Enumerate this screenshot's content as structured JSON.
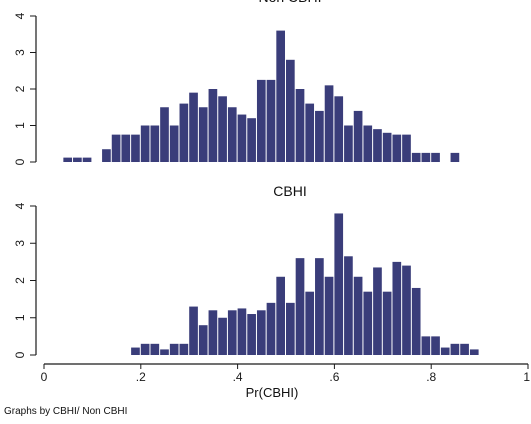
{
  "chart_data": {
    "type": "bar",
    "note": "Graphs by CBHI/ Non CBHI",
    "xlabel": "Pr(CBHI)",
    "bar_color": "#3a3d7a",
    "bin_width": 0.02,
    "xlim": [
      0,
      1
    ],
    "x_ticks": [
      0,
      0.2,
      0.4,
      0.6,
      0.8,
      1
    ],
    "x_tick_labels": [
      "0",
      ".2",
      ".4",
      ".6",
      ".8",
      "1"
    ],
    "panels": [
      {
        "title": "Non CBHI",
        "ylim": [
          0,
          4
        ],
        "y_ticks": [
          0,
          1,
          2,
          3,
          4
        ],
        "y_tick_labels": [
          "0",
          "1",
          "2",
          "3",
          "4"
        ],
        "bin_starts": [
          0.04,
          0.06,
          0.08,
          0.12,
          0.14,
          0.16,
          0.18,
          0.2,
          0.22,
          0.24,
          0.26,
          0.28,
          0.3,
          0.32,
          0.34,
          0.36,
          0.38,
          0.4,
          0.42,
          0.44,
          0.46,
          0.48,
          0.5,
          0.52,
          0.54,
          0.56,
          0.58,
          0.6,
          0.62,
          0.64,
          0.66,
          0.68,
          0.7,
          0.72,
          0.74,
          0.76,
          0.78,
          0.8,
          0.84
        ],
        "values": [
          0.12,
          0.12,
          0.12,
          0.35,
          0.75,
          0.75,
          0.75,
          1.0,
          1.0,
          1.5,
          1.0,
          1.6,
          1.9,
          1.5,
          2.0,
          1.8,
          1.5,
          1.3,
          1.2,
          2.25,
          2.25,
          3.6,
          2.8,
          2.0,
          1.6,
          1.4,
          2.1,
          1.8,
          1.0,
          1.4,
          1.0,
          0.9,
          0.8,
          0.75,
          0.75,
          0.25,
          0.25,
          0.25,
          0.25
        ]
      },
      {
        "title": "CBHI",
        "ylim": [
          0,
          4
        ],
        "y_ticks": [
          0,
          1,
          2,
          3,
          4
        ],
        "y_tick_labels": [
          "0",
          "1",
          "2",
          "3",
          "4"
        ],
        "bin_starts": [
          0.18,
          0.2,
          0.22,
          0.24,
          0.26,
          0.28,
          0.3,
          0.32,
          0.34,
          0.36,
          0.38,
          0.4,
          0.42,
          0.44,
          0.46,
          0.48,
          0.5,
          0.52,
          0.54,
          0.56,
          0.58,
          0.6,
          0.62,
          0.64,
          0.66,
          0.68,
          0.7,
          0.72,
          0.74,
          0.76,
          0.78,
          0.8,
          0.82,
          0.84,
          0.86,
          0.88
        ],
        "values": [
          0.2,
          0.3,
          0.3,
          0.15,
          0.3,
          0.3,
          1.3,
          0.8,
          1.2,
          1.0,
          1.2,
          1.25,
          1.1,
          1.2,
          1.4,
          2.1,
          1.4,
          2.6,
          1.7,
          2.6,
          2.1,
          3.8,
          2.65,
          2.1,
          1.7,
          2.35,
          1.7,
          2.5,
          2.4,
          1.8,
          0.5,
          0.5,
          0.2,
          0.3,
          0.3,
          0.15
        ]
      }
    ]
  }
}
